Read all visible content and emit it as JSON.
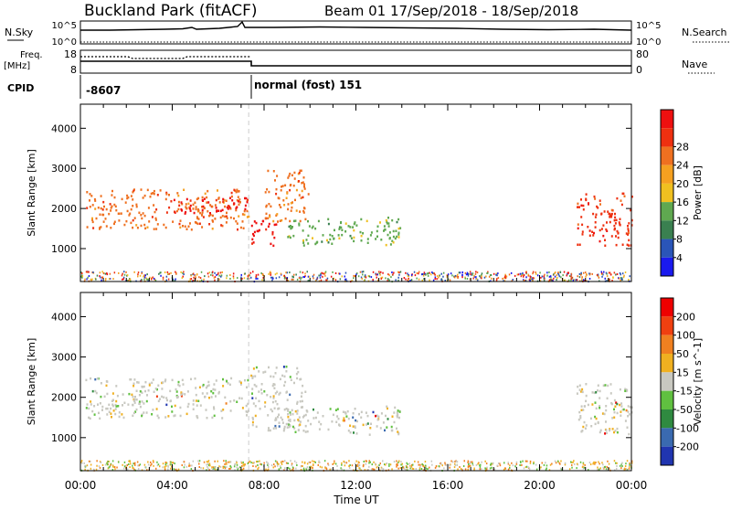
{
  "header": {
    "station": "Buckland Park (fitACF)",
    "beam_info": "Beam 01  17/Sep/2018 - 18/Sep/2018"
  },
  "top_panels": {
    "nsky": {
      "label": "N.Sky",
      "left_ticks": [
        "10^5",
        "10^0"
      ],
      "right_label": "N.Search",
      "right_ticks": [
        "10^5",
        "10^0"
      ]
    },
    "freq": {
      "label_line1": "Freq.",
      "label_line2": "[MHz]",
      "left_ticks": [
        "18",
        "8"
      ],
      "right_label": "Nave",
      "right_ticks": [
        "80",
        "0"
      ]
    },
    "cpid": {
      "label": "CPID",
      "segments": [
        {
          "start_hour": 0.0,
          "label": "-8607"
        },
        {
          "start_hour": 7.33,
          "label": "normal (fost) 151"
        }
      ]
    }
  },
  "chart_data": [
    {
      "type": "heatmap",
      "name": "power",
      "ylabel": "Slant Range [km]",
      "ylim": [
        180,
        4600
      ],
      "yticks": [
        1000,
        2000,
        3000,
        4000
      ],
      "colorbar": {
        "label": "Power [dB]",
        "ticks": [
          "4",
          "8",
          "12",
          "16",
          "20",
          "24",
          "28"
        ],
        "colors": [
          "#1a1aee",
          "#2a55b8",
          "#3a8050",
          "#5fa850",
          "#f0c020",
          "#f5a020",
          "#ef7020",
          "#ee3010",
          "#ee1010"
        ]
      },
      "regions": [
        {
          "t0": 0.2,
          "t1": 7.3,
          "r0": 1500,
          "r1": 2500,
          "color": "#ef7020"
        },
        {
          "t0": 4.0,
          "t1": 7.3,
          "r0": 1900,
          "r1": 2300,
          "color": "#ee1010"
        },
        {
          "t0": 7.4,
          "t1": 8.5,
          "r0": 1100,
          "r1": 1800,
          "color": "#ee1010"
        },
        {
          "t0": 8.0,
          "t1": 9.9,
          "r0": 1700,
          "r1": 3000,
          "color": "#ef7020"
        },
        {
          "t0": 9.0,
          "t1": 13.9,
          "r0": 1100,
          "r1": 1800,
          "color": "#5fa850"
        },
        {
          "t0": 21.6,
          "t1": 24.0,
          "r0": 1100,
          "r1": 2400,
          "color": "#ee3010"
        }
      ]
    },
    {
      "type": "heatmap",
      "name": "velocity",
      "ylabel": "Slant Range [km]",
      "xlabel": "Time UT",
      "xticks": [
        "00:00",
        "04:00",
        "08:00",
        "12:00",
        "16:00",
        "20:00",
        "00:00"
      ],
      "ylim": [
        180,
        4600
      ],
      "yticks": [
        1000,
        2000,
        3000,
        4000
      ],
      "colorbar": {
        "label": "Velocity [m s^-1]",
        "ticks": [
          "200",
          "100",
          "50",
          "15",
          "-15",
          "-50",
          "-100",
          "-200"
        ],
        "colors": [
          "#2035b0",
          "#3a6ab0",
          "#2f8a40",
          "#60c040",
          "#c8c8c0",
          "#f0b020",
          "#f08020",
          "#f04010",
          "#ee0000"
        ]
      },
      "regions": [
        {
          "t0": 0.2,
          "t1": 7.3,
          "r0": 1500,
          "r1": 2500,
          "color": "#c8c8c0"
        },
        {
          "t0": 7.4,
          "t1": 9.8,
          "r0": 1200,
          "r1": 2800,
          "color": "#c8c8c0"
        },
        {
          "t0": 9.0,
          "t1": 13.9,
          "r0": 1100,
          "r1": 1800,
          "color": "#c8c8c0"
        },
        {
          "t0": 21.6,
          "t1": 24.0,
          "r0": 1100,
          "r1": 2400,
          "color": "#c8c8c0"
        }
      ]
    }
  ]
}
